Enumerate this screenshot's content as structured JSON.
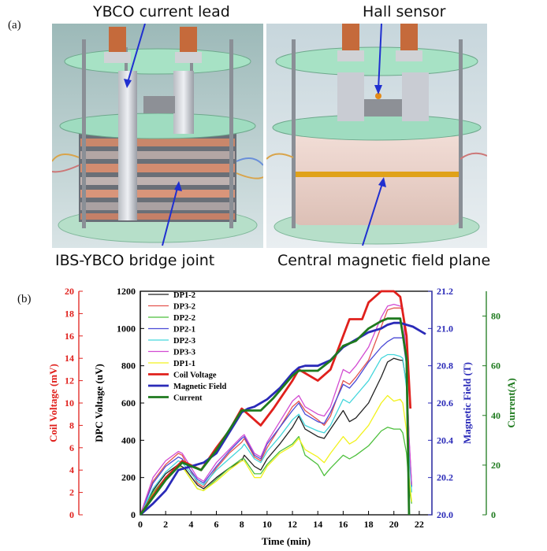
{
  "panel_a": {
    "label": "(a)",
    "callouts": {
      "current_lead": "YBCO current lead",
      "hall_sensor": "Hall sensor",
      "bridge_joint": "IBS-YBCO bridge joint",
      "field_plane": "Central magnetic field plane"
    }
  },
  "panel_b": {
    "label": "(b)"
  },
  "colors": {
    "coil": "#e0201c",
    "field": "#2a2ab8",
    "current": "#1e7a1e",
    "DP1-2": "#222222",
    "DP3-2": "#e4554f",
    "DP2-2": "#4cbf3b",
    "DP2-1": "#4a4ad6",
    "DP2-3": "#43d6dc",
    "DP3-3": "#d24bd2",
    "DP1-1": "#f2f21e"
  },
  "chart_data": {
    "type": "line",
    "xlabel": "Time (min)",
    "x_ticks": [
      "0",
      "2",
      "4",
      "6",
      "8",
      "10",
      "12",
      "14",
      "16",
      "18",
      "20",
      "22"
    ],
    "xlim": [
      0,
      23
    ],
    "axes": {
      "dpc": {
        "label": "DPC Voltage (uV)",
        "ylim": [
          0,
          1200
        ],
        "ticks": [
          "0",
          "200",
          "400",
          "600",
          "800",
          "1000",
          "1200"
        ]
      },
      "coil": {
        "label": "Coil Voltage (mV)",
        "ylim": [
          0,
          20
        ],
        "ticks": [
          "0",
          "2",
          "4",
          "6",
          "8",
          "10",
          "12",
          "14",
          "16",
          "18",
          "20"
        ]
      },
      "field": {
        "label": "Magnetic Field (T)",
        "ylim": [
          20.0,
          21.2
        ],
        "ticks": [
          "20.0",
          "20.2",
          "20.4",
          "20.6",
          "20.8",
          "21.0",
          "21.2"
        ]
      },
      "current": {
        "label": "Current(A)",
        "ylim": [
          0,
          90
        ],
        "ticks": [
          "0",
          "20",
          "40",
          "60",
          "80"
        ]
      }
    },
    "legend": [
      "DP1-2",
      "DP3-2",
      "DP2-2",
      "DP2-1",
      "DP2-3",
      "DP3-3",
      "DP1-1",
      "Coil Voltage",
      "Magnetic Field",
      "Current"
    ],
    "series": [
      {
        "name": "DP1-2",
        "axis": "dpc",
        "x": [
          0,
          1,
          2,
          3,
          3.5,
          4.5,
          5,
          6,
          7,
          8,
          8.2,
          9,
          9.5,
          10,
          11,
          12,
          12.5,
          13,
          14,
          14.5,
          15,
          16,
          16.5,
          17,
          18,
          19,
          19.5,
          20,
          20.5,
          20.7,
          21,
          21.2,
          21.4
        ],
        "y": [
          0,
          130,
          220,
          270,
          250,
          160,
          140,
          200,
          250,
          290,
          320,
          260,
          240,
          300,
          380,
          470,
          530,
          460,
          420,
          410,
          460,
          560,
          500,
          520,
          600,
          740,
          820,
          840,
          830,
          830,
          700,
          350,
          150
        ]
      },
      {
        "name": "DP3-2",
        "axis": "dpc",
        "x": [
          0,
          1,
          2,
          3,
          3.3,
          4.5,
          5,
          6,
          7,
          8,
          8.2,
          9,
          9.5,
          10,
          11,
          12,
          12.5,
          13,
          14,
          14.5,
          15,
          16,
          16.5,
          17,
          18,
          19,
          19.5,
          20,
          20.5,
          20.7,
          21,
          21.2,
          21.4
        ],
        "y": [
          0,
          180,
          270,
          330,
          320,
          170,
          150,
          250,
          330,
          390,
          410,
          310,
          290,
          360,
          470,
          580,
          610,
          560,
          510,
          480,
          530,
          720,
          700,
          740,
          830,
          1010,
          1100,
          1110,
          1110,
          1100,
          800,
          400,
          150
        ]
      },
      {
        "name": "DP2-2",
        "axis": "dpc",
        "x": [
          0,
          1,
          2,
          3,
          3.5,
          4.5,
          5,
          6,
          7,
          8,
          8.2,
          9,
          9.5,
          10,
          11,
          12,
          12.5,
          13,
          14,
          14.5,
          15,
          16,
          16.5,
          17,
          18,
          19,
          19.5,
          20,
          20.5,
          20.7,
          21,
          21.2,
          21.4
        ],
        "y": [
          0,
          120,
          200,
          260,
          240,
          140,
          130,
          190,
          250,
          300,
          300,
          220,
          220,
          270,
          340,
          380,
          420,
          320,
          270,
          210,
          250,
          320,
          300,
          320,
          370,
          450,
          470,
          460,
          460,
          440,
          330,
          150,
          60
        ]
      },
      {
        "name": "DP2-1",
        "axis": "dpc",
        "x": [
          0,
          1,
          2,
          3,
          3.3,
          4.5,
          5,
          6,
          7,
          8,
          8.2,
          9,
          9.5,
          10,
          11,
          12,
          12.5,
          13,
          14,
          14.5,
          15,
          16,
          16.5,
          17,
          18,
          19,
          19.5,
          20,
          20.5,
          20.7,
          21,
          21.2,
          21.4
        ],
        "y": [
          0,
          170,
          260,
          310,
          300,
          190,
          170,
          260,
          340,
          410,
          420,
          320,
          300,
          380,
          470,
          560,
          600,
          540,
          500,
          490,
          550,
          700,
          680,
          720,
          820,
          900,
          930,
          950,
          950,
          950,
          800,
          400,
          150
        ]
      },
      {
        "name": "DP2-3",
        "axis": "dpc",
        "x": [
          0,
          1,
          2,
          3,
          3.3,
          4.5,
          5,
          6,
          7,
          8,
          8.2,
          9,
          9.5,
          10,
          11,
          12,
          12.5,
          13,
          14,
          14.5,
          15,
          16,
          16.5,
          17,
          18,
          19,
          19.5,
          20,
          20.5,
          20.7,
          21,
          21.2,
          21.4
        ],
        "y": [
          0,
          140,
          230,
          290,
          280,
          180,
          160,
          240,
          300,
          360,
          380,
          300,
          280,
          340,
          420,
          510,
          540,
          480,
          450,
          440,
          480,
          620,
          600,
          640,
          720,
          840,
          860,
          860,
          850,
          840,
          680,
          330,
          120
        ]
      },
      {
        "name": "DP3-3",
        "axis": "dpc",
        "x": [
          0,
          1,
          2,
          3,
          3.3,
          4.5,
          5,
          6,
          7,
          8,
          8.2,
          9,
          9.5,
          10,
          11,
          12,
          12.5,
          13,
          14,
          14.5,
          15,
          16,
          16.5,
          17,
          18,
          19,
          19.5,
          20,
          20.5,
          20.7,
          21,
          21.2,
          21.4
        ],
        "y": [
          0,
          200,
          290,
          340,
          330,
          200,
          180,
          280,
          350,
          420,
          430,
          330,
          310,
          390,
          500,
          610,
          640,
          580,
          540,
          530,
          580,
          780,
          760,
          800,
          900,
          1060,
          1120,
          1130,
          1120,
          1110,
          820,
          420,
          160
        ]
      },
      {
        "name": "DP1-1",
        "axis": "dpc",
        "x": [
          0,
          1,
          2,
          3,
          3.5,
          4.5,
          5,
          6,
          7,
          8,
          8.2,
          9,
          9.5,
          10,
          11,
          12,
          12.5,
          13,
          14,
          14.5,
          15,
          16,
          16.5,
          17,
          18,
          19,
          19.5,
          20,
          20.5,
          20.7,
          21,
          21.2,
          21.4
        ],
        "y": [
          0,
          110,
          200,
          260,
          240,
          140,
          130,
          180,
          240,
          290,
          290,
          200,
          200,
          260,
          330,
          370,
          410,
          350,
          310,
          280,
          330,
          420,
          380,
          400,
          480,
          600,
          640,
          610,
          620,
          600,
          450,
          200,
          70
        ]
      },
      {
        "name": "Coil Voltage",
        "axis": "coil",
        "x": [
          0,
          1,
          2,
          3.3,
          4.8,
          6,
          7,
          8,
          9.5,
          10.5,
          12,
          12.5,
          14,
          15,
          16,
          16.5,
          17.5,
          18,
          19,
          20,
          20.5,
          21,
          21.3
        ],
        "y": [
          0,
          1.7,
          3.3,
          4.8,
          4.0,
          6.0,
          7.5,
          9.5,
          8.0,
          9.5,
          12.0,
          13.0,
          12.0,
          13.0,
          16.0,
          17.5,
          17.5,
          19.0,
          20.0,
          20.0,
          19.5,
          16.0,
          9.5
        ]
      },
      {
        "name": "Magnetic Field",
        "axis": "field",
        "x": [
          0,
          0.5,
          1,
          2,
          3,
          4,
          5,
          6,
          7,
          8,
          8.5,
          9,
          10,
          11,
          12,
          12.5,
          13,
          14,
          15,
          16,
          17,
          18,
          19,
          19.5,
          20,
          20.5,
          21,
          21.5,
          22,
          22.5
        ],
        "y": [
          20.0,
          20.03,
          20.06,
          20.13,
          20.24,
          20.26,
          20.28,
          20.33,
          20.44,
          20.55,
          20.57,
          20.58,
          20.62,
          20.68,
          20.76,
          20.79,
          20.8,
          20.8,
          20.83,
          20.9,
          20.94,
          20.98,
          21.0,
          21.02,
          21.03,
          21.03,
          21.02,
          21.01,
          20.99,
          20.97
        ]
      },
      {
        "name": "Current",
        "axis": "current",
        "x": [
          0,
          1,
          2,
          3.3,
          4.8,
          6,
          7,
          8,
          9.5,
          10.5,
          12,
          12.5,
          14,
          15,
          16,
          17,
          18,
          19,
          19.5,
          20,
          20.5,
          21,
          21.2
        ],
        "y": [
          0,
          7,
          14,
          21,
          18,
          26,
          34,
          42,
          42,
          47,
          56,
          58,
          58,
          62,
          68,
          70,
          75,
          78,
          79,
          79,
          79,
          63,
          0
        ]
      }
    ]
  }
}
